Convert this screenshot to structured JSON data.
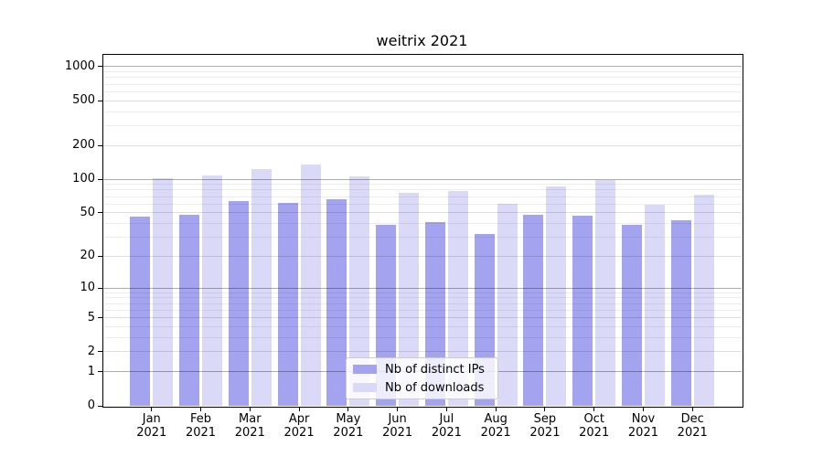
{
  "chart_data": {
    "type": "bar",
    "title": "weitrix 2021",
    "categories": [
      "Jan 2021",
      "Feb 2021",
      "Mar 2021",
      "Apr 2021",
      "May 2021",
      "Jun 2021",
      "Jul 2021",
      "Aug 2021",
      "Sep 2021",
      "Oct 2021",
      "Nov 2021",
      "Dec 2021"
    ],
    "series": [
      {
        "name": "Nb of distinct IPs",
        "color": "#a3a3f0",
        "values": [
          46,
          48,
          64,
          61,
          66,
          39,
          41,
          32,
          48,
          47,
          39,
          43
        ]
      },
      {
        "name": "Nb of downloads",
        "color": "#dadaf8",
        "values": [
          103,
          107,
          122,
          134,
          106,
          75,
          78,
          60,
          86,
          98,
          59,
          73
        ]
      }
    ],
    "xlabel": "",
    "ylabel": "",
    "yscale": "log1p",
    "ylim": [
      0,
      1295
    ],
    "yticks": [
      0,
      1,
      2,
      5,
      10,
      20,
      50,
      100,
      200,
      500,
      1000
    ],
    "yticks_minor": [
      3,
      4,
      6,
      7,
      8,
      9,
      30,
      40,
      60,
      70,
      80,
      90,
      300,
      400,
      600,
      700,
      800,
      900
    ],
    "grid": "on",
    "legend_position": "lower center"
  },
  "colors": {
    "axis": "#000000",
    "grid_power10": "rgba(0,0,0,0.32)",
    "grid_major": "rgba(0,0,0,0.13)",
    "grid_minor": "rgba(0,0,0,0.07)",
    "background": "#ffffff"
  }
}
